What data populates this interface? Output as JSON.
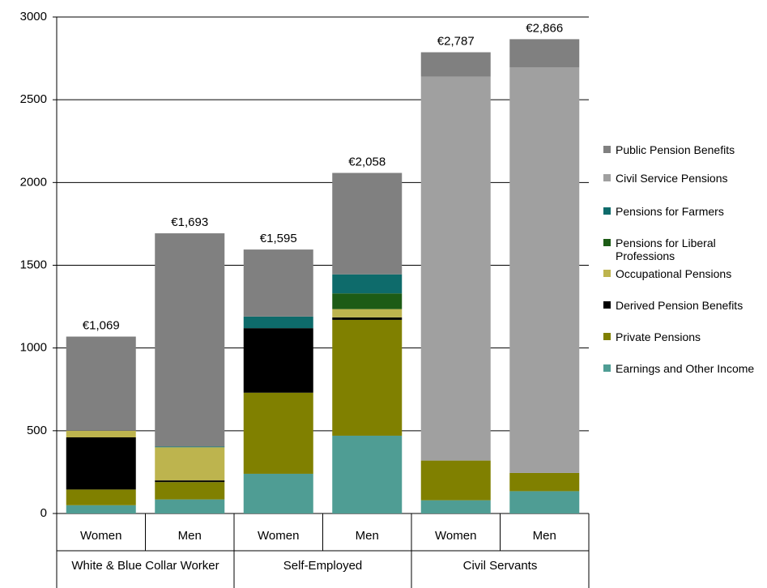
{
  "chart_data": {
    "type": "stacked_bar",
    "categories": [
      "Women",
      "Men",
      "Women",
      "Men",
      "Women",
      "Men"
    ],
    "groups": [
      "White & Blue Collar Worker",
      "Self-Employed",
      "Civil Servants"
    ],
    "series": [
      {
        "name": "Earnings and Other Income",
        "color": "#4f9d94",
        "values": [
          50,
          85,
          240,
          470,
          80,
          135
        ]
      },
      {
        "name": "Private Pensions",
        "color": "#808000",
        "values": [
          95,
          105,
          490,
          700,
          240,
          110
        ]
      },
      {
        "name": "Derived Pension Benefits",
        "color": "#000000",
        "values": [
          315,
          10,
          390,
          15,
          0,
          0
        ]
      },
      {
        "name": "Occupational Pensions",
        "color": "#bdb44e",
        "values": [
          40,
          200,
          0,
          50,
          0,
          0
        ]
      },
      {
        "name": "Pensions for Liberal Professions",
        "color": "#1d5c16",
        "values": [
          0,
          0,
          0,
          95,
          0,
          0
        ]
      },
      {
        "name": "Pensions for Farmers",
        "color": "#0e6b6b",
        "values": [
          0,
          5,
          70,
          115,
          0,
          0
        ]
      },
      {
        "name": "Civil Service Pensions",
        "color": "#a0a0a0",
        "values": [
          0,
          0,
          0,
          0,
          2320,
          2450
        ]
      },
      {
        "name": "Public Pension Benefits",
        "color": "#808080",
        "values": [
          569,
          1288,
          405,
          613,
          147,
          171
        ]
      }
    ],
    "totals": [
      1069,
      1693,
      1595,
      2058,
      2787,
      2866
    ],
    "total_labels": [
      "€1,069",
      "€1,693",
      "€1,595",
      "€2,058",
      "€2,787",
      "€2,866"
    ],
    "ylim": [
      0,
      3000
    ],
    "yticks": [
      0,
      500,
      1000,
      1500,
      2000,
      2500,
      3000
    ],
    "grid": true
  }
}
